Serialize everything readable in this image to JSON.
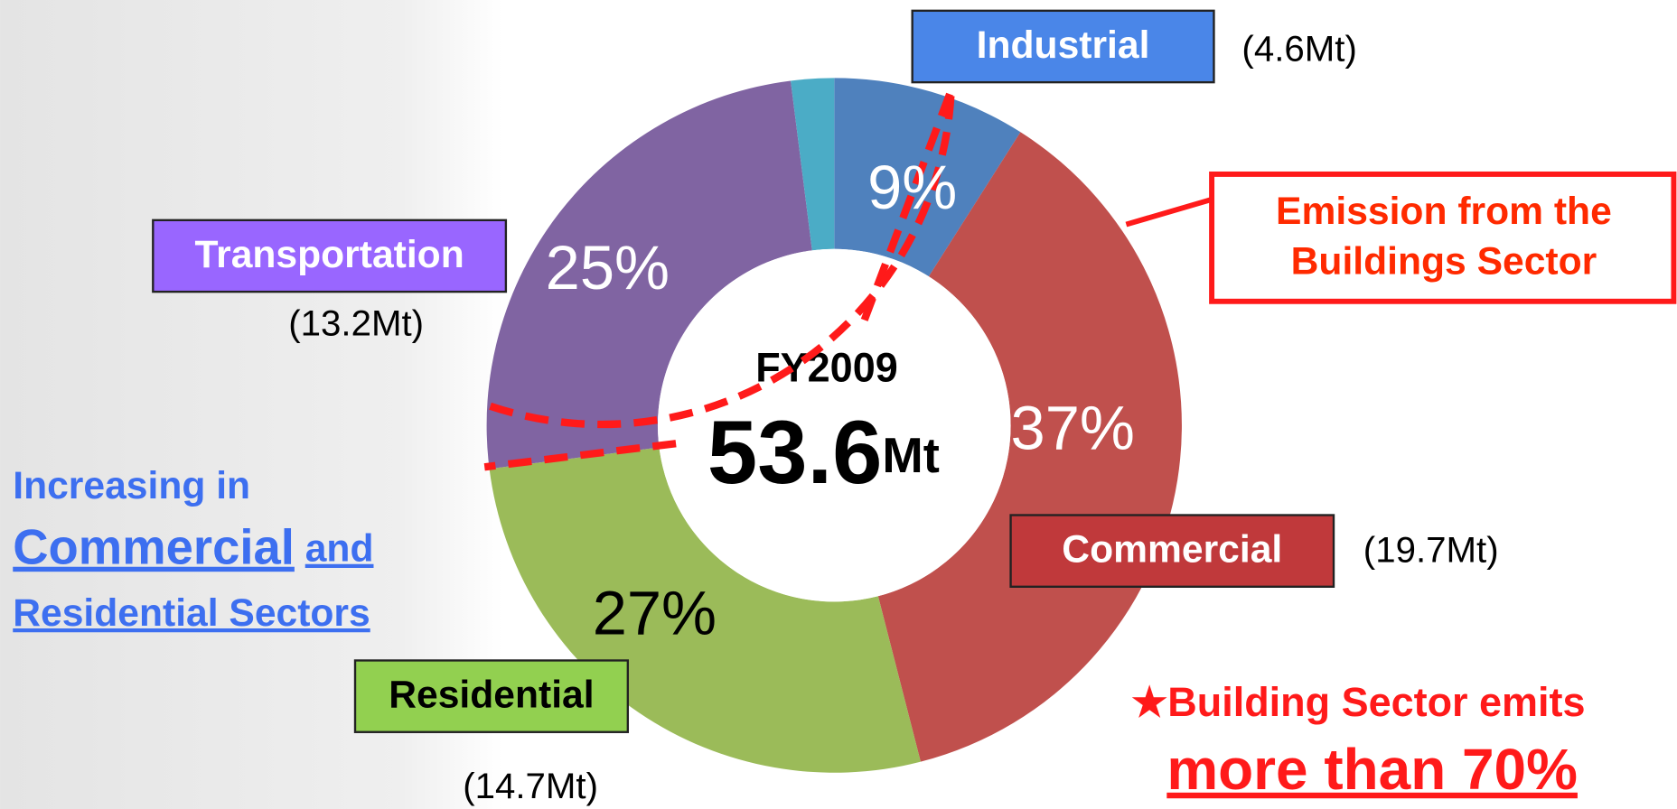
{
  "chart_data": {
    "type": "donut",
    "categories": [
      "Industrial",
      "Commercial",
      "Residential",
      "Transportation",
      null
    ],
    "values": [
      9,
      37,
      27,
      25,
      2
    ],
    "value_labels": [
      "9%",
      "37%",
      "27%",
      "25%",
      null
    ],
    "amounts": [
      "(4.6Mt)",
      "(19.7Mt)",
      "(14.7Mt)",
      "(13.2Mt)",
      null
    ],
    "colors": [
      "#4f81bd",
      "#c0504d",
      "#9bbb59",
      "#8064a2",
      "#4bacc6"
    ],
    "label_colors": [
      "#4a86e8",
      "#c0393b",
      "#92d050",
      "#9966ff",
      null
    ],
    "center_title": "FY2009",
    "center_total": "53.6",
    "center_unit": "Mt",
    "callout": [
      "Emission from the",
      "Buildings Sector"
    ],
    "note": [
      "★Building Sector emits",
      "more than 70%"
    ],
    "side_text": [
      "Increasing in",
      "Commercial",
      "and",
      "Residential Sectors"
    ]
  }
}
